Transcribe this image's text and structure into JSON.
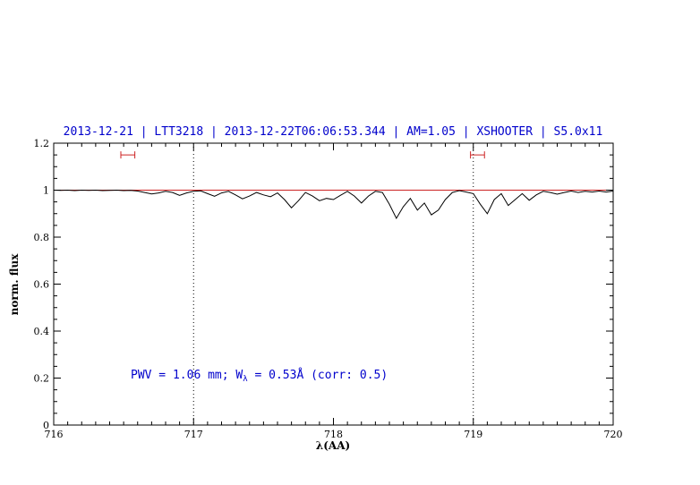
{
  "chart_data": {
    "type": "line",
    "title": "2013-12-21 | LTT3218 | 2013-12-22T06:06:53.344 | AM=1.05 | XSHOOTER | S5.0x11",
    "title_color": "#0000cc",
    "xlabel": "λ(AA)",
    "ylabel": "norm. flux",
    "xlim": [
      716,
      720
    ],
    "ylim": [
      0,
      1.2
    ],
    "xticks": [
      716,
      717,
      718,
      719,
      720
    ],
    "yticks": [
      0,
      0.2,
      0.4,
      0.6,
      0.8,
      1,
      1.2
    ],
    "x_minor_step": 0.1,
    "y_minor_step": 0.05,
    "grid": "off",
    "legend": "none",
    "dotted_vlines": [
      717,
      719
    ],
    "reference_line": {
      "y": 1.0,
      "color": "#cc2222"
    },
    "range_markers": {
      "color": "#cc2222",
      "y": 1.15,
      "items": [
        {
          "x_center": 716.53,
          "half_width": 0.05
        },
        {
          "x_center": 719.03,
          "half_width": 0.05
        }
      ]
    },
    "annotation": {
      "color": "#0000cc",
      "x": 716.55,
      "y": 0.2,
      "part1": "PWV = 1.06 mm; W",
      "sub": "λ",
      "part2": " = 0.53Å (corr: 0.5)"
    },
    "series": [
      {
        "name": "spectrum",
        "color": "#000000",
        "points": [
          [
            716.0,
            1.0
          ],
          [
            716.05,
            0.999
          ],
          [
            716.1,
            1.0
          ],
          [
            716.15,
            0.998
          ],
          [
            716.2,
            1.0
          ],
          [
            716.25,
            0.999
          ],
          [
            716.3,
            1.0
          ],
          [
            716.35,
            0.998
          ],
          [
            716.4,
            0.999
          ],
          [
            716.45,
            1.0
          ],
          [
            716.5,
            0.998
          ],
          [
            716.55,
            0.999
          ],
          [
            716.6,
            0.996
          ],
          [
            716.65,
            0.99
          ],
          [
            716.7,
            0.984
          ],
          [
            716.75,
            0.988
          ],
          [
            716.8,
            0.995
          ],
          [
            716.85,
            0.99
          ],
          [
            716.9,
            0.978
          ],
          [
            716.95,
            0.988
          ],
          [
            717.0,
            0.995
          ],
          [
            717.05,
            0.997
          ],
          [
            717.1,
            0.985
          ],
          [
            717.15,
            0.974
          ],
          [
            717.2,
            0.988
          ],
          [
            717.25,
            0.995
          ],
          [
            717.3,
            0.98
          ],
          [
            717.35,
            0.963
          ],
          [
            717.4,
            0.975
          ],
          [
            717.45,
            0.99
          ],
          [
            717.5,
            0.98
          ],
          [
            717.55,
            0.972
          ],
          [
            717.6,
            0.988
          ],
          [
            717.65,
            0.96
          ],
          [
            717.7,
            0.925
          ],
          [
            717.75,
            0.955
          ],
          [
            717.8,
            0.99
          ],
          [
            717.85,
            0.975
          ],
          [
            717.9,
            0.955
          ],
          [
            717.95,
            0.965
          ],
          [
            718.0,
            0.96
          ],
          [
            718.05,
            0.978
          ],
          [
            718.1,
            0.995
          ],
          [
            718.15,
            0.975
          ],
          [
            718.2,
            0.945
          ],
          [
            718.25,
            0.975
          ],
          [
            718.3,
            0.995
          ],
          [
            718.35,
            0.99
          ],
          [
            718.4,
            0.94
          ],
          [
            718.45,
            0.88
          ],
          [
            718.5,
            0.93
          ],
          [
            718.55,
            0.965
          ],
          [
            718.6,
            0.915
          ],
          [
            718.65,
            0.945
          ],
          [
            718.7,
            0.895
          ],
          [
            718.75,
            0.915
          ],
          [
            718.8,
            0.96
          ],
          [
            718.85,
            0.99
          ],
          [
            718.9,
            0.998
          ],
          [
            718.95,
            0.992
          ],
          [
            719.0,
            0.985
          ],
          [
            719.05,
            0.94
          ],
          [
            719.1,
            0.9
          ],
          [
            719.15,
            0.96
          ],
          [
            719.2,
            0.985
          ],
          [
            719.25,
            0.935
          ],
          [
            719.3,
            0.96
          ],
          [
            719.35,
            0.985
          ],
          [
            719.4,
            0.957
          ],
          [
            719.45,
            0.98
          ],
          [
            719.5,
            0.995
          ],
          [
            719.55,
            0.99
          ],
          [
            719.6,
            0.983
          ],
          [
            719.65,
            0.99
          ],
          [
            719.7,
            0.996
          ],
          [
            719.75,
            0.99
          ],
          [
            719.8,
            0.995
          ],
          [
            719.85,
            0.992
          ],
          [
            719.9,
            0.996
          ],
          [
            719.95,
            0.992
          ],
          [
            720.0,
            0.996
          ]
        ]
      }
    ]
  }
}
